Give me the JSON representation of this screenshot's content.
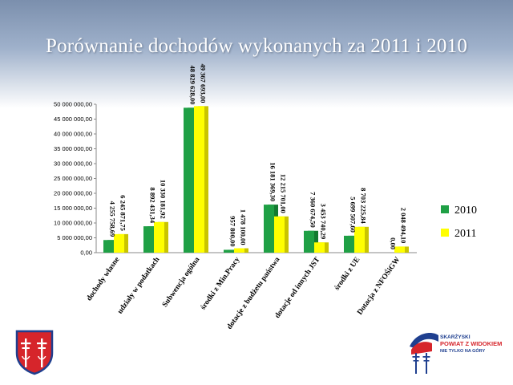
{
  "slide": {
    "title": "Porównanie dochodów wykonanych za 2011 i 2010"
  },
  "chart_data": {
    "type": "bar",
    "title": "",
    "xlabel": "",
    "ylabel": "",
    "ylim": [
      0,
      50000000
    ],
    "grid": false,
    "legend_position": "right",
    "y_ticks": [
      "0,00",
      "5 000 000,00",
      "10 000 000,00",
      "15 000 000,00",
      "20 000 000,00",
      "25 000 000,00",
      "30 000 000,00",
      "35 000 000,00",
      "40 000 000,00",
      "45 000 000,00",
      "50 000 000,00"
    ],
    "y_tick_values": [
      0,
      5000000,
      10000000,
      15000000,
      20000000,
      25000000,
      30000000,
      35000000,
      40000000,
      45000000,
      50000000
    ],
    "categories": [
      "dochody własne",
      "udziały w podatkach",
      "Subwencja ogólna",
      "środki z Min.Pracy",
      "dotacje z budżetu państwa",
      "dotacje od innych JST",
      "środki z UE",
      "Dotacja z NFOŚiGW"
    ],
    "series": [
      {
        "name": "2010",
        "color": "#1fa045",
        "values": [
          4255758.69,
          8892431.34,
          48829628.0,
          957800.0,
          16181369.3,
          7360674.5,
          5699507.6,
          0.0
        ],
        "labels": [
          "4 255 758,69",
          "8 892 431,34",
          "48 829 628,00",
          "957 800,00",
          "16 181 369,30",
          "7 360 674,50",
          "5 699 507,60",
          "0,00"
        ]
      },
      {
        "name": "2011",
        "color": "#ffff00",
        "values": [
          6245871.75,
          10330181.92,
          49367693.0,
          1478100.0,
          12215701.0,
          3453740.29,
          8703225.84,
          2048494.1
        ],
        "labels": [
          "6 245 871,75",
          "10 330 181,92",
          "49 367 693,00",
          "1 478 100,00",
          "12 215 701,00",
          "3 453 740,29",
          "8 703 225,84",
          "2 048 494,10"
        ]
      }
    ]
  },
  "logo_right": {
    "line1": "SKARŻYSKI",
    "line2": "POWIAT Z WIDOKIEM",
    "line3": "NIE TYLKO NA GÓRY"
  }
}
